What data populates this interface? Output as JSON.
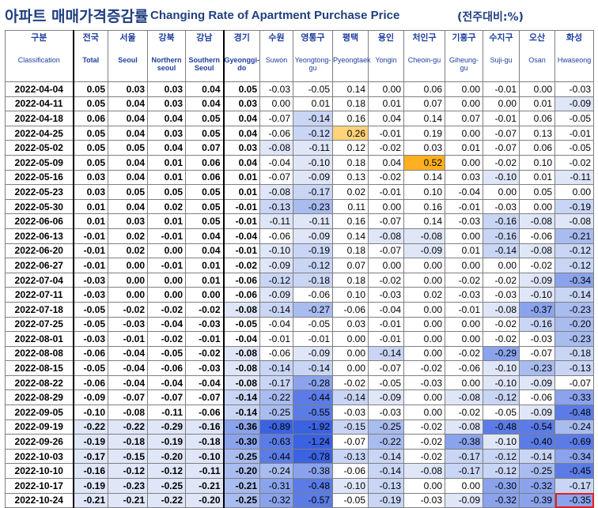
{
  "title": {
    "korean": "아파트 매매가격증감률",
    "english": "Changing Rate of Apartment Purchase Price",
    "unit": "(전주대비:%)"
  },
  "columns": [
    {
      "ko": "구분",
      "en": "Classification"
    },
    {
      "ko": "전국",
      "en": "Total"
    },
    {
      "ko": "서울",
      "en": "Seoul"
    },
    {
      "ko": "강북",
      "en": "Northern seoul"
    },
    {
      "ko": "강남",
      "en": "Southern Seoul"
    },
    {
      "ko": "경기",
      "en": "Gyeonggi-do"
    },
    {
      "ko": "수원",
      "en": "Suwon"
    },
    {
      "ko": "영통구",
      "en": "Yeongtong-gu"
    },
    {
      "ko": "평택",
      "en": "Pyeongtaek"
    },
    {
      "ko": "용인",
      "en": "Yongin"
    },
    {
      "ko": "처인구",
      "en": "Cheoin-gu"
    },
    {
      "ko": "기흥구",
      "en": "Giheung-gu"
    },
    {
      "ko": "수지구",
      "en": "Suji-gu"
    },
    {
      "ko": "오산",
      "en": "Osan"
    },
    {
      "ko": "화성",
      "en": "Hwaseong"
    }
  ],
  "rows": [
    {
      "date": "2022-04-04",
      "v": [
        "0.05",
        "0.03",
        "0.03",
        "0.04",
        "0.05",
        "-0.03",
        "-0.05",
        "0.14",
        "0.00",
        "0.06",
        "0.00",
        "-0.01",
        "0.00",
        "-0.03"
      ]
    },
    {
      "date": "2022-04-11",
      "v": [
        "0.05",
        "0.04",
        "0.03",
        "0.04",
        "0.03",
        "0.00",
        "0.01",
        "0.18",
        "0.01",
        "0.07",
        "0.00",
        "0.00",
        "0.01",
        "-0.09"
      ]
    },
    {
      "date": "2022-04-18",
      "v": [
        "0.06",
        "0.04",
        "0.04",
        "0.05",
        "0.04",
        "-0.07",
        "-0.14",
        "0.16",
        "0.04",
        "0.14",
        "0.07",
        "-0.01",
        "0.06",
        "-0.05"
      ]
    },
    {
      "date": "2022-04-25",
      "v": [
        "0.05",
        "0.04",
        "0.03",
        "0.05",
        "0.04",
        "-0.06",
        "-0.12",
        "0.26",
        "-0.01",
        "0.19",
        "0.00",
        "-0.07",
        "0.13",
        "-0.01"
      ]
    },
    {
      "date": "2022-05-02",
      "v": [
        "0.05",
        "0.05",
        "0.04",
        "0.07",
        "0.03",
        "-0.08",
        "-0.11",
        "0.12",
        "-0.02",
        "0.03",
        "0.01",
        "-0.07",
        "0.06",
        "-0.05"
      ]
    },
    {
      "date": "2022-05-09",
      "v": [
        "0.05",
        "0.04",
        "0.01",
        "0.06",
        "0.04",
        "-0.04",
        "-0.10",
        "0.18",
        "0.04",
        "0.52",
        "0.00",
        "-0.02",
        "0.10",
        "-0.02"
      ]
    },
    {
      "date": "2022-05-16",
      "v": [
        "0.03",
        "0.04",
        "0.01",
        "0.06",
        "0.01",
        "-0.07",
        "-0.09",
        "0.13",
        "-0.02",
        "0.14",
        "0.03",
        "-0.10",
        "0.01",
        "-0.11"
      ]
    },
    {
      "date": "2022-05-23",
      "v": [
        "0.03",
        "0.05",
        "0.05",
        "0.05",
        "0.01",
        "-0.08",
        "-0.17",
        "0.02",
        "-0.01",
        "0.10",
        "-0.04",
        "0.00",
        "0.05",
        "0.00"
      ]
    },
    {
      "date": "2022-05-30",
      "v": [
        "0.01",
        "0.04",
        "0.02",
        "0.05",
        "-0.01",
        "-0.13",
        "-0.23",
        "0.11",
        "0.00",
        "0.16",
        "-0.01",
        "-0.03",
        "0.00",
        "-0.19"
      ]
    },
    {
      "date": "2022-06-06",
      "v": [
        "0.01",
        "0.03",
        "0.01",
        "0.05",
        "-0.01",
        "-0.11",
        "-0.11",
        "0.16",
        "-0.07",
        "0.14",
        "-0.03",
        "-0.16",
        "-0.08",
        "-0.08"
      ]
    },
    {
      "date": "2022-06-13",
      "v": [
        "-0.01",
        "0.02",
        "-0.01",
        "0.04",
        "-0.04",
        "-0.06",
        "-0.09",
        "0.14",
        "-0.08",
        "-0.08",
        "0.00",
        "-0.16",
        "-0.06",
        "-0.21"
      ]
    },
    {
      "date": "2022-06-20",
      "v": [
        "-0.01",
        "0.02",
        "0.00",
        "0.04",
        "-0.01",
        "-0.10",
        "-0.19",
        "0.18",
        "-0.07",
        "-0.09",
        "0.01",
        "-0.14",
        "-0.08",
        "-0.12"
      ]
    },
    {
      "date": "2022-06-27",
      "v": [
        "-0.01",
        "0.00",
        "-0.01",
        "0.01",
        "-0.02",
        "-0.09",
        "-0.12",
        "0.07",
        "0.00",
        "0.00",
        "0.00",
        "0.00",
        "-0.02",
        "-0.12"
      ]
    },
    {
      "date": "2022-07-04",
      "v": [
        "-0.03",
        "0.00",
        "0.00",
        "0.01",
        "-0.06",
        "-0.12",
        "-0.18",
        "0.18",
        "-0.02",
        "0.00",
        "-0.02",
        "-0.02",
        "-0.09",
        "-0.34"
      ]
    },
    {
      "date": "2022-07-11",
      "v": [
        "-0.03",
        "0.00",
        "0.00",
        "0.00",
        "-0.06",
        "-0.09",
        "-0.06",
        "0.10",
        "-0.03",
        "0.02",
        "-0.03",
        "-0.03",
        "-0.10",
        "-0.14"
      ]
    },
    {
      "date": "2022-07-18",
      "v": [
        "-0.05",
        "-0.02",
        "-0.02",
        "-0.02",
        "-0.08",
        "-0.14",
        "-0.27",
        "-0.06",
        "-0.04",
        "0.00",
        "-0.01",
        "-0.08",
        "-0.37",
        "-0.23"
      ]
    },
    {
      "date": "2022-07-25",
      "v": [
        "-0.05",
        "-0.03",
        "-0.04",
        "-0.03",
        "-0.05",
        "-0.04",
        "-0.05",
        "0.03",
        "-0.01",
        "0.00",
        "0.00",
        "-0.02",
        "-0.16",
        "-0.20"
      ]
    },
    {
      "date": "2022-08-01",
      "v": [
        "-0.03",
        "-0.01",
        "-0.02",
        "-0.01",
        "-0.04",
        "-0.01",
        "-0.01",
        "0.00",
        "-0.01",
        "0.00",
        "0.00",
        "-0.02",
        "-0.03",
        "-0.23"
      ]
    },
    {
      "date": "2022-08-08",
      "v": [
        "-0.06",
        "-0.04",
        "-0.05",
        "-0.02",
        "-0.08",
        "-0.06",
        "-0.09",
        "0.00",
        "-0.14",
        "0.00",
        "-0.02",
        "-0.29",
        "-0.07",
        "-0.18"
      ]
    },
    {
      "date": "2022-08-15",
      "v": [
        "-0.05",
        "-0.04",
        "-0.06",
        "-0.03",
        "-0.08",
        "-0.14",
        "-0.14",
        "0.00",
        "-0.07",
        "-0.02",
        "-0.06",
        "-0.10",
        "-0.23",
        "-0.13"
      ]
    },
    {
      "date": "2022-08-22",
      "v": [
        "-0.06",
        "-0.04",
        "-0.04",
        "-0.04",
        "-0.08",
        "-0.17",
        "-0.28",
        "-0.02",
        "-0.05",
        "-0.03",
        "0.00",
        "-0.10",
        "-0.09",
        "-0.07"
      ]
    },
    {
      "date": "2022-08-29",
      "v": [
        "-0.09",
        "-0.07",
        "-0.07",
        "-0.07",
        "-0.14",
        "-0.22",
        "-0.44",
        "-0.14",
        "-0.09",
        "0.00",
        "-0.08",
        "-0.12",
        "-0.06",
        "-0.33"
      ]
    },
    {
      "date": "2022-09-05",
      "v": [
        "-0.10",
        "-0.08",
        "-0.11",
        "-0.06",
        "-0.14",
        "-0.25",
        "-0.55",
        "-0.03",
        "-0.03",
        "0.00",
        "-0.02",
        "-0.05",
        "-0.09",
        "-0.48"
      ]
    },
    {
      "date": "2022-09-19",
      "v": [
        "-0.22",
        "-0.22",
        "-0.29",
        "-0.16",
        "-0.36",
        "-0.89",
        "-1.92",
        "-0.15",
        "-0.25",
        "-0.02",
        "-0.08",
        "-0.48",
        "-0.54",
        "-0.24"
      ]
    },
    {
      "date": "2022-09-26",
      "v": [
        "-0.19",
        "-0.18",
        "-0.19",
        "-0.18",
        "-0.30",
        "-0.63",
        "-1.24",
        "-0.07",
        "-0.22",
        "-0.02",
        "-0.38",
        "-0.10",
        "-0.40",
        "-0.69"
      ]
    },
    {
      "date": "2022-10-03",
      "v": [
        "-0.17",
        "-0.15",
        "-0.20",
        "-0.10",
        "-0.25",
        "-0.44",
        "-0.78",
        "-0.13",
        "-0.14",
        "-0.02",
        "-0.17",
        "-0.12",
        "-0.14",
        "-0.34"
      ]
    },
    {
      "date": "2022-10-10",
      "v": [
        "-0.16",
        "-0.12",
        "-0.12",
        "-0.11",
        "-0.20",
        "-0.24",
        "-0.38",
        "-0.06",
        "-0.14",
        "-0.08",
        "-0.17",
        "-0.12",
        "-0.25",
        "-0.45"
      ]
    },
    {
      "date": "2022-10-17",
      "v": [
        "-0.19",
        "-0.23",
        "-0.25",
        "-0.21",
        "-0.21",
        "-0.31",
        "-0.48",
        "-0.10",
        "-0.13",
        "0.00",
        "0.00",
        "-0.30",
        "-0.32",
        "-0.17"
      ]
    },
    {
      "date": "2022-10-24",
      "v": [
        "-0.21",
        "-0.21",
        "-0.22",
        "-0.20",
        "-0.25",
        "-0.32",
        "-0.57",
        "-0.05",
        "-0.19",
        "-0.03",
        "-0.09",
        "-0.32",
        "-0.39",
        "-0.35"
      ]
    }
  ],
  "highlighted_cell": {
    "row": "2022-10-24",
    "column": "화성"
  },
  "colors": {
    "title": "#1f3f7f",
    "header_text": "#1f3f9f",
    "positive_highlight": "#ffd37a",
    "positive_strong": "#ffb020",
    "negative_light": "#dfe6f7",
    "negative_mid": "#a9bcef",
    "negative_strong": "#3b62e0",
    "outline": "#e0201e"
  }
}
